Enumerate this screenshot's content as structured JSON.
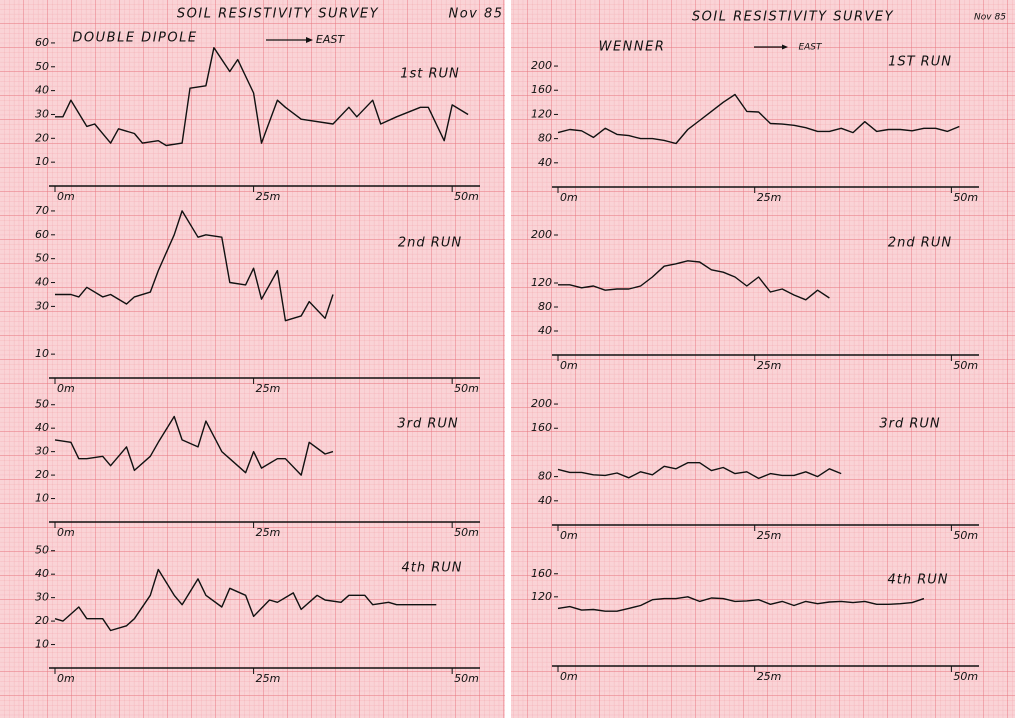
{
  "sheets": [
    {
      "title": "SOIL RESISTIVITY SURVEY",
      "date": "Nov 85",
      "method": "DOUBLE DIPOLE",
      "direction": "EAST"
    },
    {
      "title": "SOIL RESISTIVITY SURVEY",
      "date": "Nov 85",
      "method": "WENNER",
      "direction": "EAST"
    }
  ],
  "chart_data": [
    {
      "type": "line",
      "title": "1st RUN",
      "color": "#111111",
      "xlim": [
        0,
        53
      ],
      "ylim": [
        0,
        65
      ],
      "yticks": [
        10,
        20,
        30,
        40,
        50,
        60
      ],
      "xticks": [
        {
          "value": 0,
          "label": "0m"
        },
        {
          "value": 25,
          "label": "25m"
        },
        {
          "value": 50,
          "label": "50m"
        }
      ],
      "x": [
        0,
        1,
        2,
        4,
        5,
        7,
        8,
        10,
        11,
        13,
        14,
        16,
        17,
        19,
        20,
        22,
        23,
        25,
        26,
        28,
        29,
        31,
        35,
        37,
        38,
        40,
        41,
        43,
        46,
        47,
        49,
        50,
        52
      ],
      "values": [
        29,
        29,
        36,
        25,
        26,
        18,
        24,
        22,
        18,
        19,
        17,
        18,
        41,
        42,
        58,
        48,
        53,
        39,
        18,
        36,
        33,
        28,
        26,
        33,
        29,
        36,
        26,
        29,
        33,
        33,
        19,
        34,
        30
      ]
    },
    {
      "type": "line",
      "title": "2nd RUN",
      "color": "#111111",
      "xlim": [
        0,
        53
      ],
      "ylim": [
        0,
        75
      ],
      "yticks": [
        10,
        30,
        40,
        50,
        60,
        70
      ],
      "xticks": [
        {
          "value": 0,
          "label": "0m"
        },
        {
          "value": 25,
          "label": "25m"
        },
        {
          "value": 50,
          "label": "50m"
        }
      ],
      "x": [
        0,
        2,
        3,
        4,
        6,
        7,
        9,
        10,
        12,
        13,
        15,
        16,
        18,
        19,
        21,
        22,
        24,
        25,
        26,
        28,
        29,
        31,
        32,
        34,
        35
      ],
      "values": [
        35,
        35,
        34,
        38,
        34,
        35,
        31,
        34,
        36,
        45,
        60,
        70,
        59,
        60,
        59,
        40,
        39,
        46,
        33,
        45,
        24,
        26,
        32,
        25,
        35
      ]
    },
    {
      "type": "line",
      "title": "3rd RUN",
      "color": "#111111",
      "xlim": [
        0,
        53
      ],
      "ylim": [
        0,
        55
      ],
      "yticks": [
        10,
        20,
        30,
        40,
        50
      ],
      "xticks": [
        {
          "value": 0,
          "label": "0m"
        },
        {
          "value": 25,
          "label": "25m"
        },
        {
          "value": 50,
          "label": "50m"
        }
      ],
      "x": [
        0,
        2,
        3,
        4,
        6,
        7,
        9,
        10,
        12,
        13,
        15,
        16,
        18,
        19,
        21,
        22,
        24,
        25,
        26,
        28,
        29,
        31,
        32,
        34,
        35
      ],
      "values": [
        35,
        34,
        27,
        27,
        28,
        24,
        32,
        22,
        28,
        34,
        45,
        35,
        32,
        43,
        30,
        27,
        21,
        30,
        23,
        27,
        27,
        20,
        34,
        29,
        30
      ]
    },
    {
      "type": "line",
      "title": "4th RUN",
      "color": "#111111",
      "xlim": [
        0,
        53
      ],
      "ylim": [
        0,
        55
      ],
      "yticks": [
        10,
        20,
        30,
        40,
        50
      ],
      "xticks": [
        {
          "value": 0,
          "label": "0m"
        },
        {
          "value": 25,
          "label": "25m"
        },
        {
          "value": 50,
          "label": "50m"
        }
      ],
      "x": [
        0,
        1,
        3,
        4,
        6,
        7,
        9,
        10,
        12,
        13,
        15,
        16,
        18,
        19,
        21,
        22,
        24,
        25,
        27,
        28,
        30,
        31,
        33,
        34,
        36,
        37,
        39,
        40,
        42,
        43,
        45,
        46,
        48
      ],
      "values": [
        21,
        20,
        26,
        21,
        21,
        16,
        18,
        21,
        31,
        42,
        31,
        27,
        38,
        31,
        26,
        34,
        31,
        22,
        29,
        28,
        32,
        25,
        31,
        29,
        28,
        31,
        31,
        27,
        28,
        27,
        27,
        27,
        27
      ]
    },
    {
      "type": "line",
      "title": "1ST RUN",
      "color": "#111111",
      "xlim": [
        0,
        53
      ],
      "ylim": [
        0,
        210
      ],
      "yticks": [
        40,
        80,
        120,
        160,
        200
      ],
      "xticks": [
        {
          "value": 0,
          "label": "0m"
        },
        {
          "value": 25,
          "label": "25m"
        },
        {
          "value": 50,
          "label": "50m"
        }
      ],
      "x": [
        0,
        1.5,
        3,
        4.5,
        6,
        7.5,
        9,
        10.5,
        12,
        13.5,
        15,
        16.5,
        18,
        19.5,
        21,
        22.5,
        24,
        25.5,
        27,
        28.5,
        30,
        31.5,
        33,
        34.5,
        36,
        37.5,
        39,
        40.5,
        42,
        43.5,
        45,
        46.5,
        48,
        49.5,
        51
      ],
      "values": [
        90,
        95,
        93,
        82,
        97,
        87,
        85,
        80,
        80,
        77,
        72,
        95,
        110,
        125,
        140,
        153,
        125,
        124,
        105,
        104,
        102,
        98,
        92,
        92,
        97,
        90,
        108,
        92,
        95,
        95,
        93,
        97,
        97,
        92,
        100
      ]
    },
    {
      "type": "line",
      "title": "2nd RUN",
      "color": "#111111",
      "xlim": [
        0,
        53
      ],
      "ylim": [
        0,
        210
      ],
      "yticks": [
        40,
        80,
        120,
        200
      ],
      "xticks": [
        {
          "value": 0,
          "label": "0m"
        },
        {
          "value": 25,
          "label": "25m"
        },
        {
          "value": 50,
          "label": "50m"
        }
      ],
      "x": [
        0,
        1.5,
        3,
        4.5,
        6,
        7.5,
        9,
        10.5,
        12,
        13.5,
        15,
        16.5,
        18,
        19.5,
        21,
        22.5,
        24,
        25.5,
        27,
        28.5,
        30,
        31.5,
        33,
        34.5
      ],
      "values": [
        117,
        117,
        112,
        115,
        108,
        110,
        110,
        115,
        130,
        148,
        152,
        157,
        155,
        142,
        138,
        130,
        115,
        130,
        105,
        110,
        100,
        92,
        108,
        95
      ]
    },
    {
      "type": "line",
      "title": "3rd RUN",
      "color": "#111111",
      "xlim": [
        0,
        53
      ],
      "ylim": [
        0,
        210
      ],
      "yticks": [
        40,
        80,
        160,
        200
      ],
      "xticks": [
        {
          "value": 0,
          "label": "0m"
        },
        {
          "value": 25,
          "label": "25m"
        },
        {
          "value": 50,
          "label": "50m"
        }
      ],
      "x": [
        0,
        1.5,
        3,
        4.5,
        6,
        7.5,
        9,
        10.5,
        12,
        13.5,
        15,
        16.5,
        18,
        19.5,
        21,
        22.5,
        24,
        25.5,
        27,
        28.5,
        30,
        31.5,
        33,
        34.5,
        36
      ],
      "values": [
        92,
        87,
        87,
        83,
        82,
        86,
        78,
        88,
        83,
        97,
        93,
        103,
        103,
        90,
        95,
        85,
        88,
        77,
        85,
        82,
        82,
        88,
        80,
        93,
        85
      ]
    },
    {
      "type": "line",
      "title": "4th RUN",
      "color": "#111111",
      "xlim": [
        0,
        53
      ],
      "ylim": [
        0,
        170
      ],
      "yticks": [
        120,
        160
      ],
      "xticks": [
        {
          "value": 0,
          "label": "0m"
        },
        {
          "value": 25,
          "label": "25m"
        },
        {
          "value": 50,
          "label": "50m"
        }
      ],
      "x": [
        0,
        1.5,
        3,
        4.5,
        6,
        7.5,
        9,
        10.5,
        12,
        13.5,
        15,
        16.5,
        18,
        19.5,
        21,
        22.5,
        24,
        25.5,
        27,
        28.5,
        30,
        31.5,
        33,
        34.5,
        36,
        37.5,
        39,
        40.5,
        42,
        43.5,
        45,
        46.5
      ],
      "values": [
        100,
        103,
        97,
        98,
        95,
        95,
        100,
        105,
        115,
        117,
        117,
        120,
        112,
        118,
        117,
        112,
        113,
        115,
        107,
        112,
        105,
        112,
        108,
        111,
        112,
        110,
        112,
        107,
        107,
        108,
        110,
        117
      ]
    }
  ]
}
